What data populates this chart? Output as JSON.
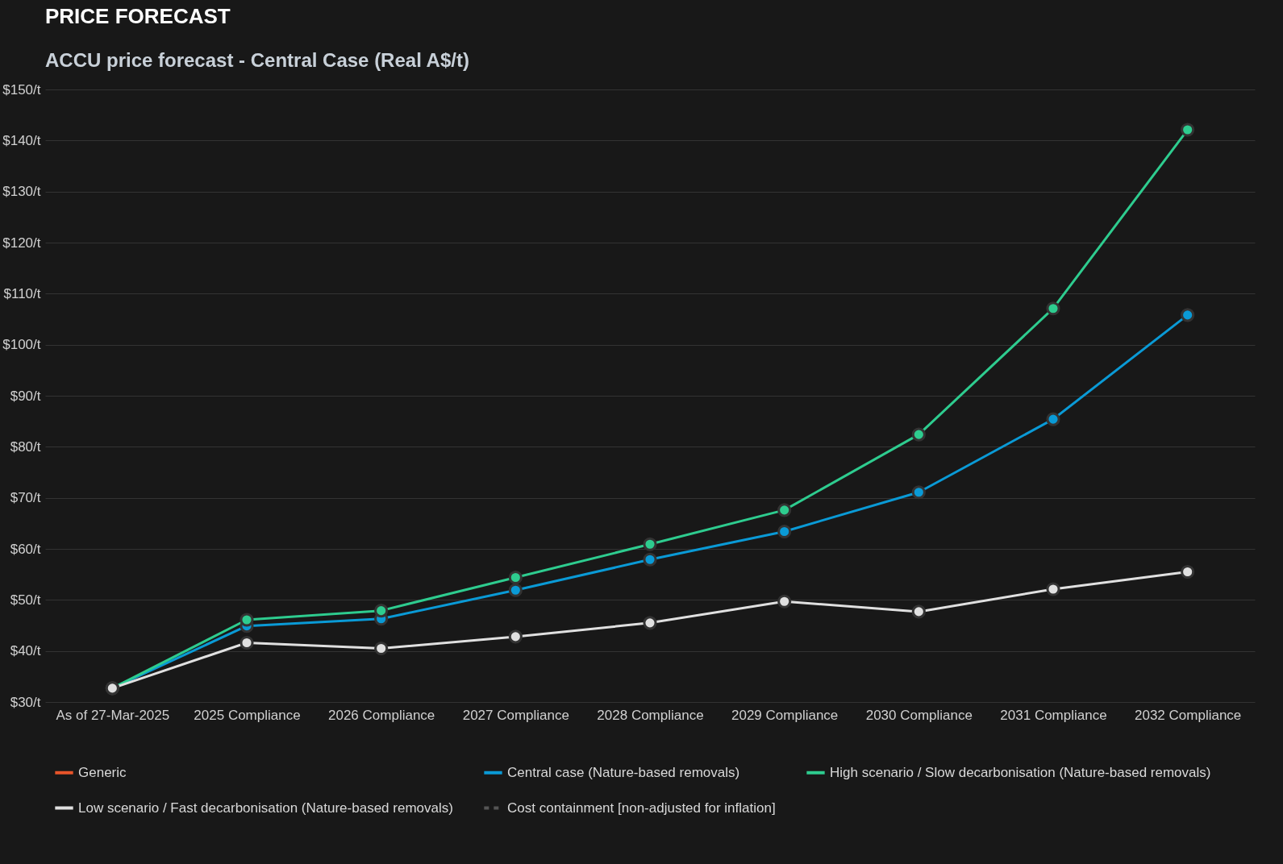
{
  "chart_data": {
    "type": "line",
    "title": "PRICE FORECAST",
    "subtitle": "ACCU price forecast - Central Case (Real A$/t)",
    "categories": [
      "As of 27-Mar-2025",
      "2025 Compliance",
      "2026 Compliance",
      "2027 Compliance",
      "2028 Compliance",
      "2029 Compliance",
      "2030 Compliance",
      "2031 Compliance",
      "2032 Compliance"
    ],
    "series": [
      {
        "name": "Generic",
        "color": "#e8542a",
        "line_style": "solid",
        "values": [
          null,
          null,
          null,
          null,
          null,
          null,
          null,
          null,
          null
        ]
      },
      {
        "name": "Central case (Nature-based removals)",
        "color": "#0a9ad6",
        "line_style": "solid",
        "values": [
          32.7,
          44.9,
          46.3,
          51.9,
          57.9,
          63.4,
          71.1,
          85.4,
          105.8
        ]
      },
      {
        "name": "High scenario / Slow decarbonisation (Nature-based removals)",
        "color": "#2ecc8f",
        "line_style": "solid",
        "values": [
          32.7,
          46.1,
          47.9,
          54.4,
          60.9,
          67.6,
          82.4,
          107.1,
          142.1
        ]
      },
      {
        "name": "Low scenario / Fast decarbonisation (Nature-based removals)",
        "color": "#e0e0e0",
        "line_style": "solid",
        "values": [
          32.7,
          41.6,
          40.5,
          42.8,
          45.5,
          49.7,
          47.7,
          52.1,
          55.5
        ]
      },
      {
        "name": "Cost containment [non-adjusted for inflation]",
        "color": "#555555",
        "line_style": "dashed",
        "values": [
          null,
          null,
          null,
          null,
          null,
          null,
          null,
          null,
          null
        ]
      }
    ],
    "ylim": [
      30,
      150
    ],
    "yticks": [
      {
        "value": 30,
        "label": "$30/t"
      },
      {
        "value": 40,
        "label": "$40/t"
      },
      {
        "value": 50,
        "label": "$50/t"
      },
      {
        "value": 60,
        "label": "$60/t"
      },
      {
        "value": 70,
        "label": "$70/t"
      },
      {
        "value": 80,
        "label": "$80/t"
      },
      {
        "value": 90,
        "label": "$90/t"
      },
      {
        "value": 100,
        "label": "$100/t"
      },
      {
        "value": 110,
        "label": "$110/t"
      },
      {
        "value": 120,
        "label": "$120/t"
      },
      {
        "value": 130,
        "label": "$130/t"
      },
      {
        "value": 140,
        "label": "$140/t"
      },
      {
        "value": 150,
        "label": "$150/t"
      }
    ],
    "grid": "y",
    "legend": "bottom",
    "marker": "circle"
  }
}
